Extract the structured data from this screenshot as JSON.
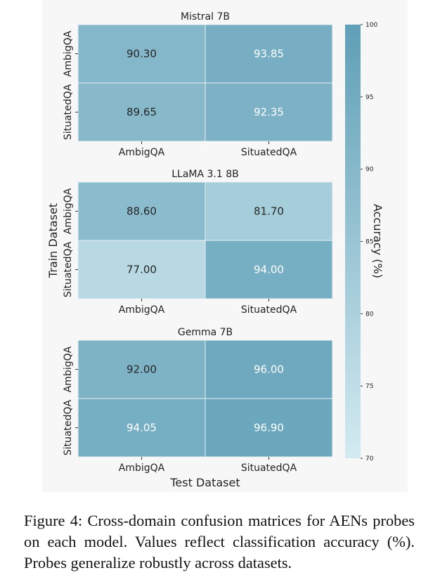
{
  "chart_data": {
    "type": "heatmap",
    "colorbar": {
      "label": "Accuracy (%)",
      "range": [
        70,
        100
      ],
      "ticks": [
        70,
        75,
        80,
        85,
        90,
        95,
        100
      ],
      "color_low": "#d3eaf1",
      "color_high": "#5f9fb7"
    },
    "shared_ylabel": "Train Dataset",
    "shared_xlabel": "Test Dataset",
    "panels": [
      {
        "title": "Mistral 7B",
        "rows": [
          "AmbigQA",
          "SituatedQA"
        ],
        "cols": [
          "AmbigQA",
          "SituatedQA"
        ],
        "values": [
          [
            90.3,
            93.85
          ],
          [
            89.65,
            92.35
          ]
        ],
        "labels": [
          [
            "90.30",
            "93.85"
          ],
          [
            "89.65",
            "92.35"
          ]
        ]
      },
      {
        "title": "LLaMA 3.1 8B",
        "rows": [
          "AmbigQA",
          "SituatedQA"
        ],
        "cols": [
          "AmbigQA",
          "SituatedQA"
        ],
        "values": [
          [
            88.6,
            81.7
          ],
          [
            77.0,
            94.0
          ]
        ],
        "labels": [
          [
            "88.60",
            "81.70"
          ],
          [
            "77.00",
            "94.00"
          ]
        ]
      },
      {
        "title": "Gemma 7B",
        "rows": [
          "AmbigQA",
          "SituatedQA"
        ],
        "cols": [
          "AmbigQA",
          "SituatedQA"
        ],
        "values": [
          [
            92.0,
            96.0
          ],
          [
            94.05,
            96.9
          ]
        ],
        "labels": [
          [
            "92.00",
            "96.00"
          ],
          [
            "94.05",
            "96.90"
          ]
        ]
      }
    ]
  },
  "caption": "Figure 4: Cross-domain confusion matrices for AENs probes on each model. Values reflect classification accuracy (%). Probes generalize robustly across datasets."
}
